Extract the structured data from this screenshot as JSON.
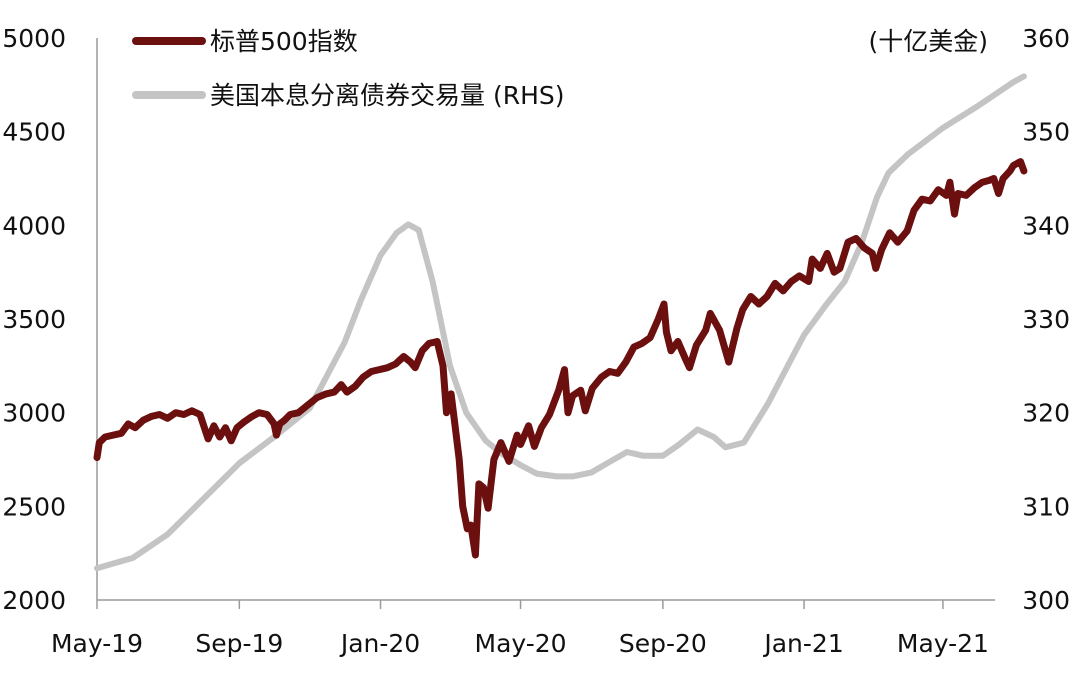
{
  "chart_data": {
    "type": "line",
    "title": "",
    "xlabel": "",
    "ylabel": "",
    "y2label": "(十亿美金)",
    "grid": false,
    "legend_position": "top-left",
    "x_range": [
      "2019-05-01",
      "2021-06-15"
    ],
    "x_ticks": [
      {
        "date": "2019-05-01",
        "label": "May-19"
      },
      {
        "date": "2019-09-01",
        "label": "Sep-19"
      },
      {
        "date": "2020-01-01",
        "label": "Jan-20"
      },
      {
        "date": "2020-05-01",
        "label": "May-20"
      },
      {
        "date": "2020-09-01",
        "label": "Sep-20"
      },
      {
        "date": "2021-01-01",
        "label": "Jan-21"
      },
      {
        "date": "2021-05-01",
        "label": "May-21"
      }
    ],
    "ylim": [
      2000,
      5000
    ],
    "y_ticks": [
      "2000",
      "2500",
      "3000",
      "3500",
      "4000",
      "4500",
      "5000"
    ],
    "y2lim": [
      300,
      360
    ],
    "y2_ticks": [
      "300",
      "310",
      "320",
      "330",
      "340",
      "350",
      "360"
    ],
    "series": [
      {
        "name": "标普500指数",
        "axis": "left",
        "color": "#6b0f0f",
        "points": [
          [
            "2019-05-01",
            2760
          ],
          [
            "2019-05-03",
            2840
          ],
          [
            "2019-05-08",
            2870
          ],
          [
            "2019-05-15",
            2880
          ],
          [
            "2019-05-22",
            2890
          ],
          [
            "2019-05-28",
            2940
          ],
          [
            "2019-06-03",
            2920
          ],
          [
            "2019-06-10",
            2960
          ],
          [
            "2019-06-17",
            2980
          ],
          [
            "2019-06-24",
            2990
          ],
          [
            "2019-07-01",
            2970
          ],
          [
            "2019-07-08",
            3000
          ],
          [
            "2019-07-15",
            2990
          ],
          [
            "2019-07-22",
            3010
          ],
          [
            "2019-07-29",
            2990
          ],
          [
            "2019-08-05",
            2860
          ],
          [
            "2019-08-10",
            2930
          ],
          [
            "2019-08-15",
            2870
          ],
          [
            "2019-08-20",
            2920
          ],
          [
            "2019-08-25",
            2850
          ],
          [
            "2019-08-30",
            2920
          ],
          [
            "2019-09-05",
            2950
          ],
          [
            "2019-09-12",
            2980
          ],
          [
            "2019-09-18",
            3000
          ],
          [
            "2019-09-25",
            2990
          ],
          [
            "2019-10-01",
            2940
          ],
          [
            "2019-10-03",
            2880
          ],
          [
            "2019-10-06",
            2940
          ],
          [
            "2019-10-10",
            2960
          ],
          [
            "2019-10-15",
            2990
          ],
          [
            "2019-10-22",
            3000
          ],
          [
            "2019-10-30",
            3040
          ],
          [
            "2019-11-07",
            3080
          ],
          [
            "2019-11-15",
            3100
          ],
          [
            "2019-11-22",
            3110
          ],
          [
            "2019-11-28",
            3150
          ],
          [
            "2019-12-03",
            3110
          ],
          [
            "2019-12-10",
            3140
          ],
          [
            "2019-12-17",
            3190
          ],
          [
            "2019-12-24",
            3220
          ],
          [
            "2019-12-31",
            3230
          ],
          [
            "2020-01-07",
            3240
          ],
          [
            "2020-01-14",
            3260
          ],
          [
            "2020-01-21",
            3300
          ],
          [
            "2020-01-27",
            3270
          ],
          [
            "2020-01-31",
            3240
          ],
          [
            "2020-02-06",
            3330
          ],
          [
            "2020-02-12",
            3370
          ],
          [
            "2020-02-19",
            3380
          ],
          [
            "2020-02-24",
            3250
          ],
          [
            "2020-02-27",
            3000
          ],
          [
            "2020-03-02",
            3100
          ],
          [
            "2020-03-05",
            2950
          ],
          [
            "2020-03-09",
            2750
          ],
          [
            "2020-03-12",
            2500
          ],
          [
            "2020-03-16",
            2380
          ],
          [
            "2020-03-19",
            2400
          ],
          [
            "2020-03-23",
            2240
          ],
          [
            "2020-03-26",
            2620
          ],
          [
            "2020-03-30",
            2600
          ],
          [
            "2020-04-03",
            2490
          ],
          [
            "2020-04-08",
            2750
          ],
          [
            "2020-04-14",
            2840
          ],
          [
            "2020-04-21",
            2740
          ],
          [
            "2020-04-28",
            2880
          ],
          [
            "2020-05-01",
            2830
          ],
          [
            "2020-05-08",
            2930
          ],
          [
            "2020-05-13",
            2820
          ],
          [
            "2020-05-19",
            2920
          ],
          [
            "2020-05-26",
            2990
          ],
          [
            "2020-06-03",
            3120
          ],
          [
            "2020-06-08",
            3230
          ],
          [
            "2020-06-11",
            3000
          ],
          [
            "2020-06-15",
            3090
          ],
          [
            "2020-06-22",
            3120
          ],
          [
            "2020-06-26",
            3010
          ],
          [
            "2020-07-02",
            3130
          ],
          [
            "2020-07-10",
            3190
          ],
          [
            "2020-07-17",
            3220
          ],
          [
            "2020-07-24",
            3210
          ],
          [
            "2020-07-31",
            3270
          ],
          [
            "2020-08-07",
            3350
          ],
          [
            "2020-08-14",
            3370
          ],
          [
            "2020-08-21",
            3400
          ],
          [
            "2020-08-28",
            3500
          ],
          [
            "2020-09-02",
            3580
          ],
          [
            "2020-09-04",
            3430
          ],
          [
            "2020-09-08",
            3330
          ],
          [
            "2020-09-14",
            3380
          ],
          [
            "2020-09-21",
            3280
          ],
          [
            "2020-09-24",
            3240
          ],
          [
            "2020-09-30",
            3360
          ],
          [
            "2020-10-08",
            3440
          ],
          [
            "2020-10-12",
            3530
          ],
          [
            "2020-10-20",
            3440
          ],
          [
            "2020-10-28",
            3270
          ],
          [
            "2020-11-04",
            3450
          ],
          [
            "2020-11-09",
            3550
          ],
          [
            "2020-11-16",
            3620
          ],
          [
            "2020-11-23",
            3580
          ],
          [
            "2020-11-30",
            3620
          ],
          [
            "2020-12-07",
            3690
          ],
          [
            "2020-12-14",
            3650
          ],
          [
            "2020-12-21",
            3700
          ],
          [
            "2020-12-28",
            3730
          ],
          [
            "2021-01-05",
            3700
          ],
          [
            "2021-01-08",
            3820
          ],
          [
            "2021-01-15",
            3770
          ],
          [
            "2021-01-21",
            3850
          ],
          [
            "2021-01-27",
            3750
          ],
          [
            "2021-02-01",
            3770
          ],
          [
            "2021-02-08",
            3910
          ],
          [
            "2021-02-15",
            3930
          ],
          [
            "2021-02-22",
            3880
          ],
          [
            "2021-03-01",
            3850
          ],
          [
            "2021-03-04",
            3770
          ],
          [
            "2021-03-09",
            3870
          ],
          [
            "2021-03-16",
            3960
          ],
          [
            "2021-03-23",
            3910
          ],
          [
            "2021-03-31",
            3970
          ],
          [
            "2021-04-06",
            4080
          ],
          [
            "2021-04-13",
            4140
          ],
          [
            "2021-04-20",
            4130
          ],
          [
            "2021-04-27",
            4190
          ],
          [
            "2021-05-04",
            4160
          ],
          [
            "2021-05-07",
            4230
          ],
          [
            "2021-05-11",
            4060
          ],
          [
            "2021-05-14",
            4170
          ],
          [
            "2021-05-21",
            4160
          ],
          [
            "2021-05-28",
            4200
          ],
          [
            "2021-06-04",
            4230
          ],
          [
            "2021-06-10",
            4240
          ],
          [
            "2021-06-14",
            4250
          ],
          [
            "2021-06-18",
            4170
          ],
          [
            "2021-06-22",
            4250
          ],
          [
            "2021-06-28",
            4290
          ],
          [
            "2021-07-01",
            4320
          ],
          [
            "2021-07-07",
            4340
          ],
          [
            "2021-07-10",
            4290
          ]
        ]
      },
      {
        "name": "美国本息分离债券交易量 (RHS)",
        "axis": "right",
        "color": "#c4c4c4",
        "points": [
          [
            "2019-05-01",
            303.4
          ],
          [
            "2019-06-01",
            304.5
          ],
          [
            "2019-07-01",
            307.0
          ],
          [
            "2019-08-01",
            310.8
          ],
          [
            "2019-09-01",
            314.6
          ],
          [
            "2019-10-01",
            317.4
          ],
          [
            "2019-11-01",
            320.5
          ],
          [
            "2019-12-01",
            327.5
          ],
          [
            "2019-12-15",
            332.0
          ],
          [
            "2020-01-01",
            336.8
          ],
          [
            "2020-01-15",
            339.2
          ],
          [
            "2020-01-25",
            340.1
          ],
          [
            "2020-02-03",
            339.5
          ],
          [
            "2020-02-15",
            334.0
          ],
          [
            "2020-03-01",
            325.0
          ],
          [
            "2020-03-15",
            320.0
          ],
          [
            "2020-04-01",
            317.0
          ],
          [
            "2020-04-15",
            315.6
          ],
          [
            "2020-05-01",
            314.4
          ],
          [
            "2020-05-15",
            313.5
          ],
          [
            "2020-06-01",
            313.2
          ],
          [
            "2020-06-15",
            313.2
          ],
          [
            "2020-07-01",
            313.6
          ],
          [
            "2020-07-15",
            314.6
          ],
          [
            "2020-08-01",
            315.8
          ],
          [
            "2020-08-15",
            315.4
          ],
          [
            "2020-09-01",
            315.4
          ],
          [
            "2020-09-15",
            316.6
          ],
          [
            "2020-10-01",
            318.2
          ],
          [
            "2020-10-15",
            317.4
          ],
          [
            "2020-10-25",
            316.3
          ],
          [
            "2020-11-10",
            316.8
          ],
          [
            "2020-12-01",
            321.0
          ],
          [
            "2020-12-20",
            325.5
          ],
          [
            "2021-01-01",
            328.3
          ],
          [
            "2021-01-20",
            331.5
          ],
          [
            "2021-02-05",
            334.0
          ],
          [
            "2021-02-20",
            338.2
          ],
          [
            "2021-03-05",
            343.0
          ],
          [
            "2021-03-15",
            345.6
          ],
          [
            "2021-04-01",
            347.6
          ],
          [
            "2021-05-01",
            350.4
          ],
          [
            "2021-06-01",
            352.8
          ],
          [
            "2021-07-01",
            355.3
          ],
          [
            "2021-07-10",
            355.9
          ]
        ]
      }
    ]
  }
}
